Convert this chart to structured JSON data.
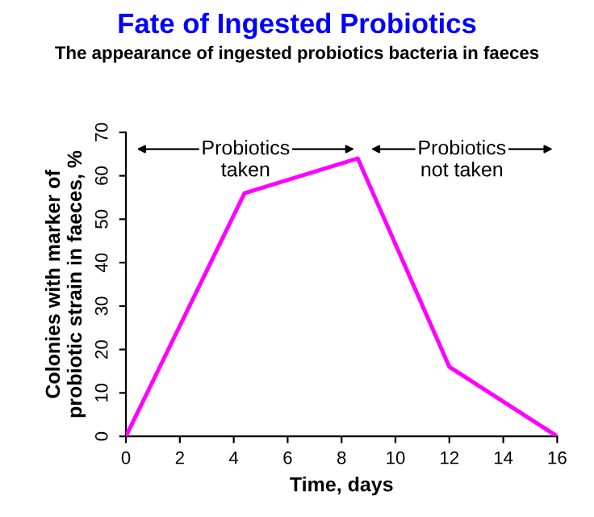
{
  "chart_data": {
    "type": "line",
    "title": "Fate of Ingested Probiotics",
    "subtitle": "The appearance of ingested probiotics bacteria in faeces",
    "xlabel": "Time, days",
    "ylabel": "Colonies with marker of\nprobiotic strain in faeces, %",
    "x": [
      0,
      4.4,
      8.6,
      12,
      16
    ],
    "series": [
      {
        "color": "#ff00ff",
        "values": [
          0,
          56,
          64,
          16,
          0
        ]
      }
    ],
    "xlim": [
      0,
      16
    ],
    "xticks": [
      0,
      2,
      4,
      6,
      8,
      10,
      12,
      14,
      16
    ],
    "ylim": [
      0,
      70
    ],
    "yticks": [
      0,
      10,
      20,
      30,
      40,
      50,
      60,
      70
    ],
    "annotations": [
      "Probiotics\ntaken",
      "Probiotics\nnot taken"
    ],
    "grid": false
  }
}
